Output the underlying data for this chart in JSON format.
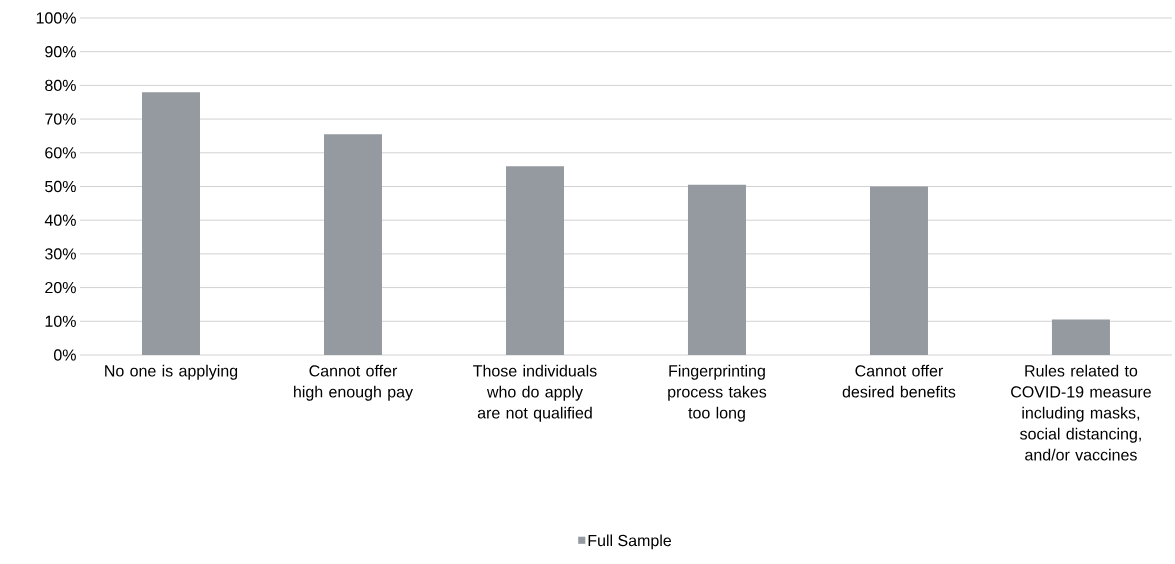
{
  "chart_data": {
    "type": "bar",
    "categories": [
      "No one is applying",
      "Cannot offer high enough pay",
      "Those individuals who do apply are not qualified",
      "Fingerprinting process takes too long",
      "Cannot offer desired benefits",
      "Rules related to COVID-19 measure including masks, social distancing, and/or vaccines"
    ],
    "series": [
      {
        "name": "Full Sample",
        "color": "#949a9f",
        "values": [
          78,
          65.5,
          56,
          50.5,
          50,
          10.5
        ]
      }
    ],
    "ylim": [
      0,
      100
    ],
    "yticks": [
      {
        "value": 0,
        "label": "0%"
      },
      {
        "value": 10,
        "label": "10%"
      },
      {
        "value": 20,
        "label": "20%"
      },
      {
        "value": 30,
        "label": "30%"
      },
      {
        "value": 40,
        "label": "40%"
      },
      {
        "value": 50,
        "label": "50%"
      },
      {
        "value": 60,
        "label": "60%"
      },
      {
        "value": 70,
        "label": "70%"
      },
      {
        "value": 80,
        "label": "80%"
      },
      {
        "value": 90,
        "label": "90%"
      },
      {
        "value": 100,
        "label": "100%"
      }
    ],
    "grid": "y",
    "legend": "bottom"
  }
}
